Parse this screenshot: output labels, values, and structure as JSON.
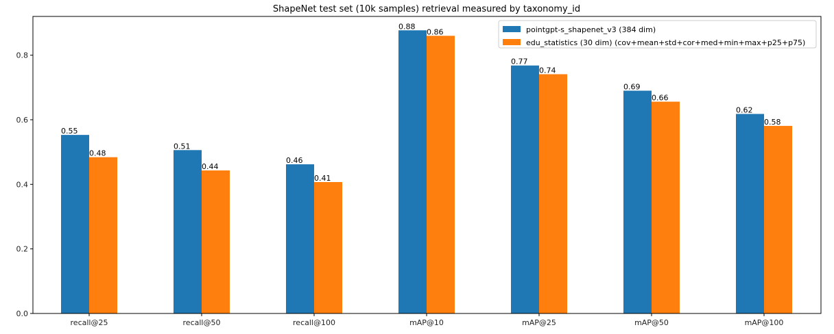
{
  "chart_data": {
    "type": "bar",
    "title": "ShapeNet test set (10k samples) retrieval measured by taxonomy_id",
    "xlabel": "",
    "ylabel": "",
    "ylim": [
      0,
      0.92
    ],
    "yticks": [
      "0.0",
      "0.2",
      "0.4",
      "0.6",
      "0.8"
    ],
    "yticks_values": [
      0,
      0.2,
      0.4,
      0.6,
      0.8
    ],
    "grid": false,
    "legend_position": "top-right",
    "categories": [
      "recall@25",
      "recall@50",
      "recall@100",
      "mAP@10",
      "mAP@25",
      "mAP@50",
      "mAP@100"
    ],
    "series": [
      {
        "name": "pointgpt-s_shapenet_v3 (384 dim)",
        "color": "#1f77b4",
        "values": [
          0.553,
          0.506,
          0.462,
          0.877,
          0.768,
          0.69,
          0.618
        ],
        "labels": [
          "0.55",
          "0.51",
          "0.46",
          "0.88",
          "0.77",
          "0.69",
          "0.62"
        ]
      },
      {
        "name": "edu_statistics (30 dim) (cov+mean+std+cor+med+min+max+p25+p75)",
        "color": "#ff7f0e",
        "values": [
          0.484,
          0.443,
          0.407,
          0.86,
          0.741,
          0.656,
          0.581
        ],
        "labels": [
          "0.48",
          "0.44",
          "0.41",
          "0.86",
          "0.74",
          "0.66",
          "0.58"
        ]
      }
    ]
  }
}
